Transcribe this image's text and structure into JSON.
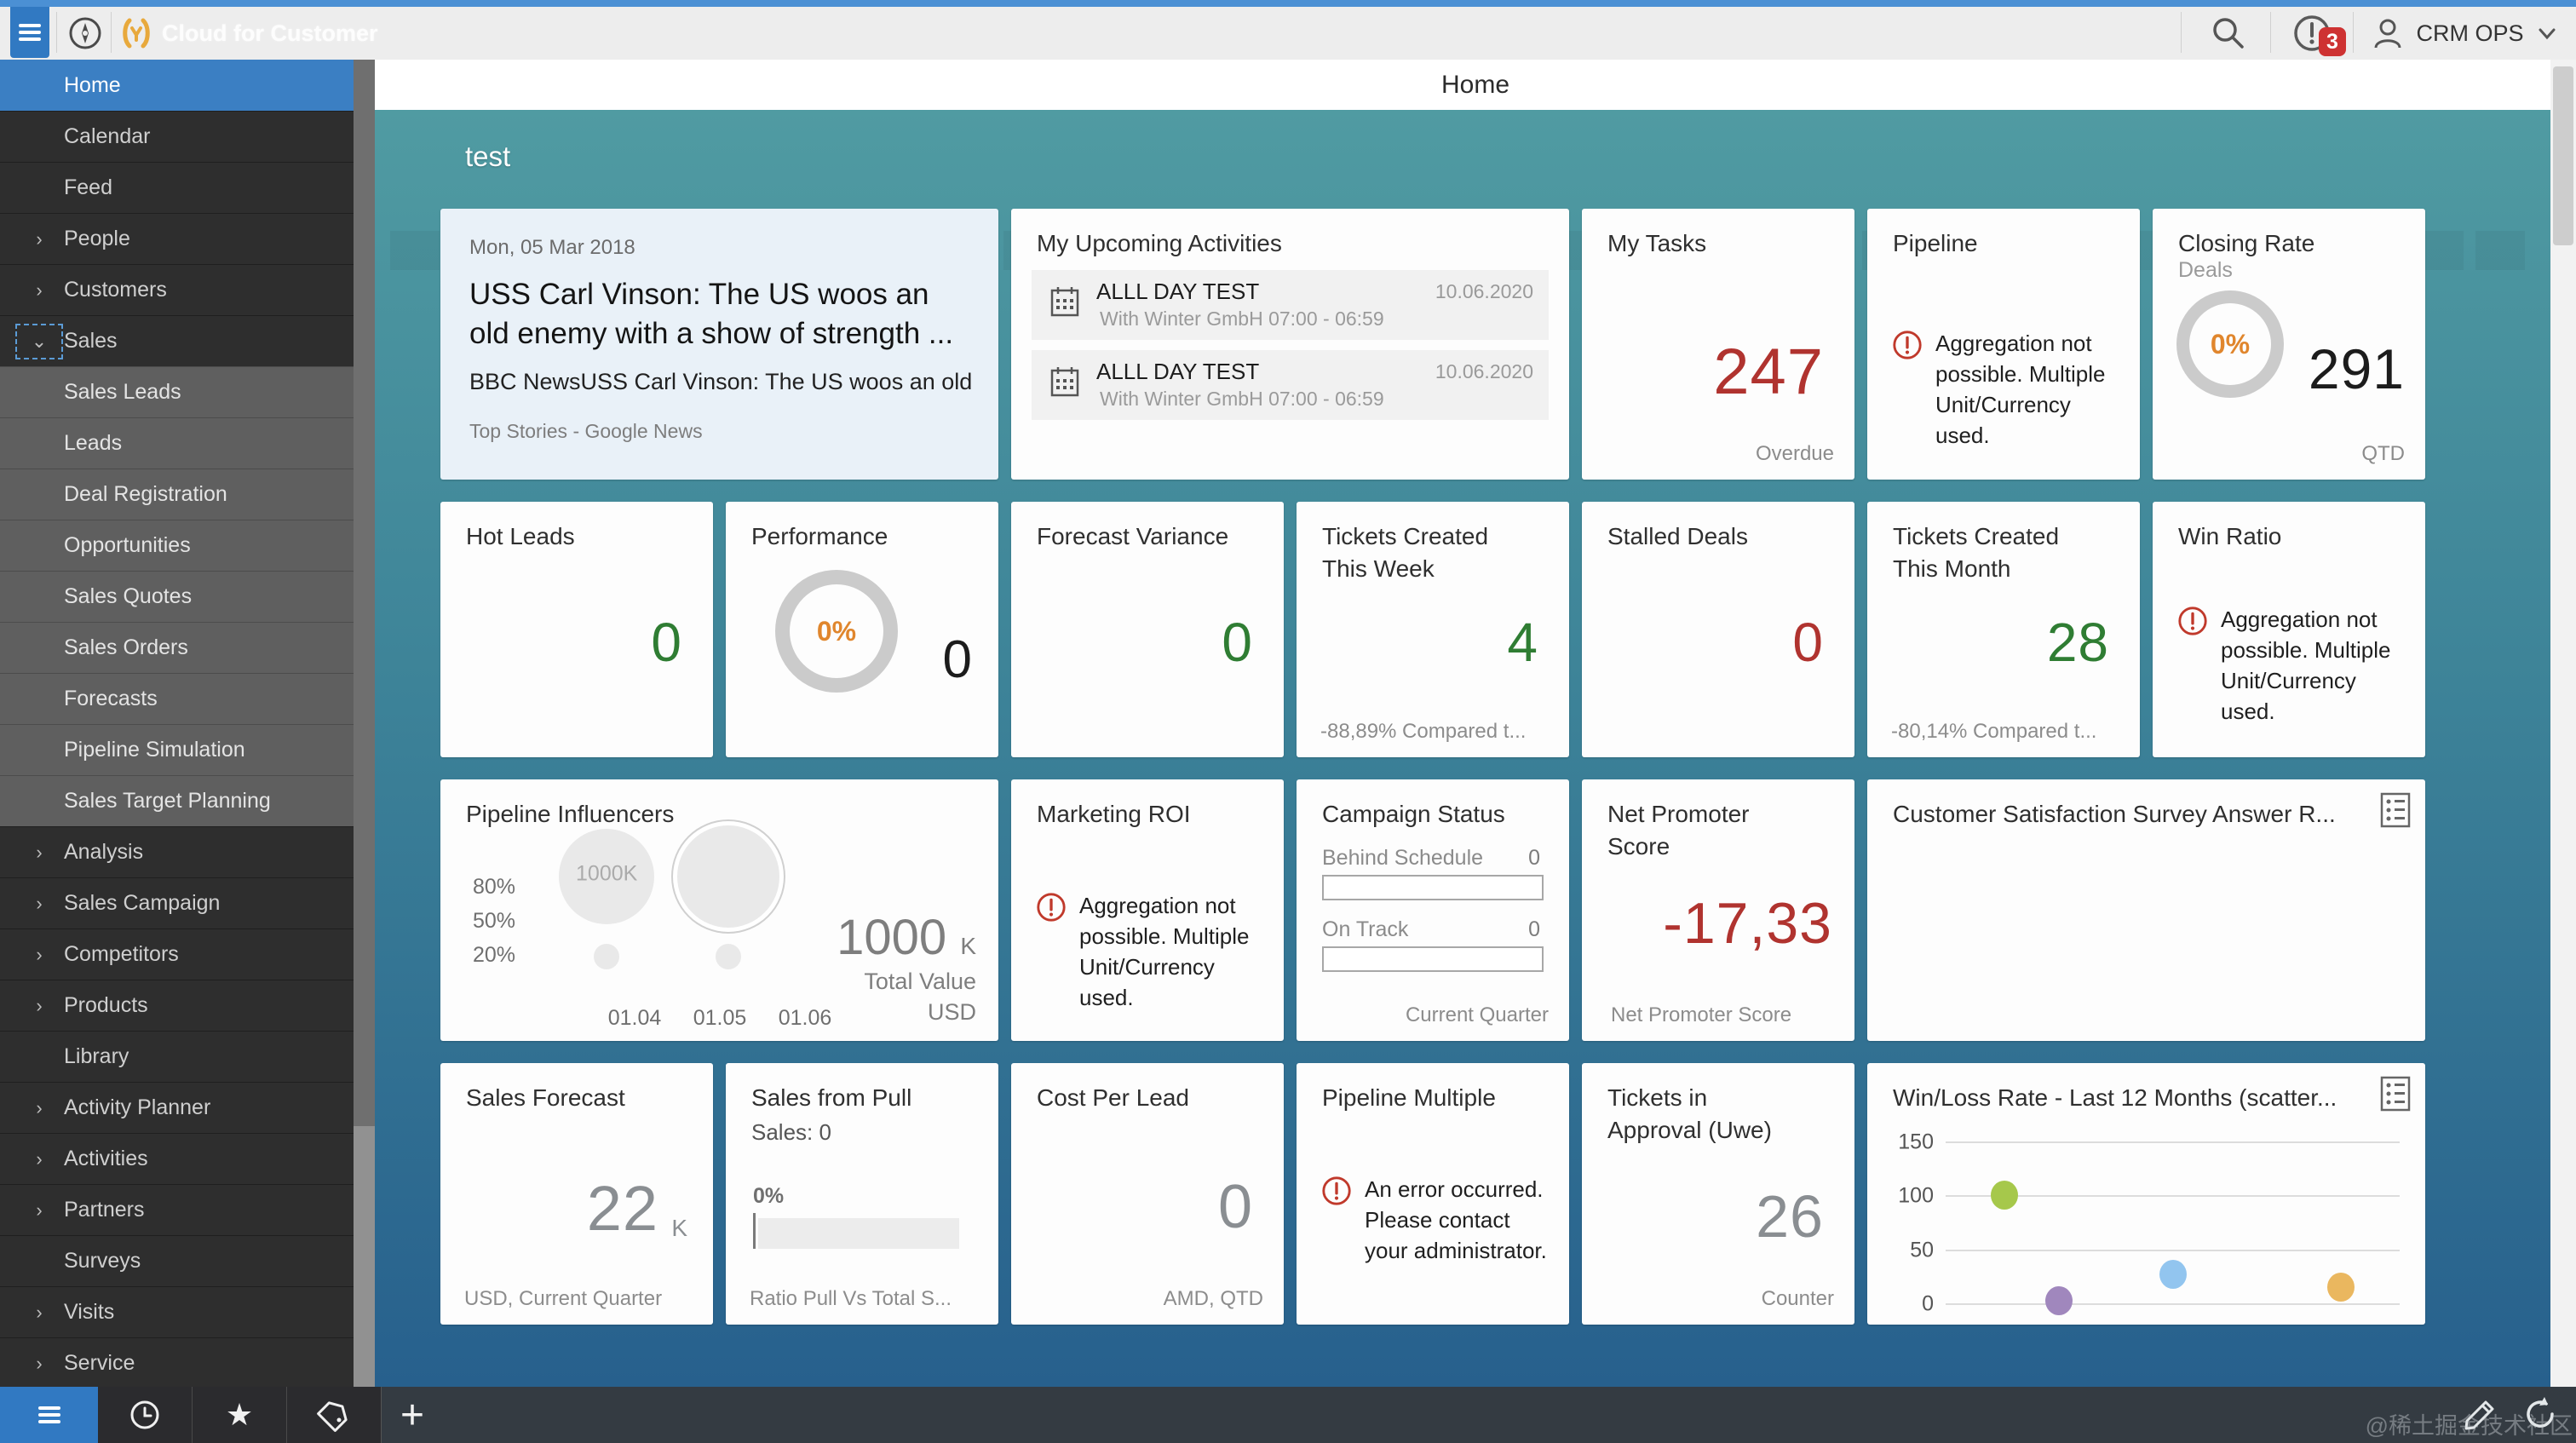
{
  "topbar": {
    "app_title": "Cloud for Customer",
    "user_name": "CRM OPS",
    "alert_count": "3"
  },
  "main_header": {
    "title": "Home"
  },
  "dashboard": {
    "title": "test"
  },
  "sidebar": {
    "items": [
      {
        "label": "Home",
        "chevron": "",
        "type": "selected"
      },
      {
        "label": "Calendar",
        "chevron": "",
        "type": "item"
      },
      {
        "label": "Feed",
        "chevron": "",
        "type": "item"
      },
      {
        "label": "People",
        "chevron": "›",
        "type": "item"
      },
      {
        "label": "Customers",
        "chevron": "›",
        "type": "item"
      },
      {
        "label": "Sales",
        "chevron": "⌄",
        "type": "item",
        "focused": true
      },
      {
        "label": "Sales Leads",
        "chevron": "",
        "type": "sub"
      },
      {
        "label": "Leads",
        "chevron": "",
        "type": "sub"
      },
      {
        "label": "Deal Registration",
        "chevron": "",
        "type": "sub"
      },
      {
        "label": "Opportunities",
        "chevron": "",
        "type": "sub"
      },
      {
        "label": "Sales Quotes",
        "chevron": "",
        "type": "sub"
      },
      {
        "label": "Sales Orders",
        "chevron": "",
        "type": "sub"
      },
      {
        "label": "Forecasts",
        "chevron": "",
        "type": "sub"
      },
      {
        "label": "Pipeline Simulation",
        "chevron": "",
        "type": "sub"
      },
      {
        "label": "Sales Target Planning",
        "chevron": "",
        "type": "sub"
      },
      {
        "label": "Analysis",
        "chevron": "›",
        "type": "item"
      },
      {
        "label": "Sales Campaign",
        "chevron": "›",
        "type": "item"
      },
      {
        "label": "Competitors",
        "chevron": "›",
        "type": "item"
      },
      {
        "label": "Products",
        "chevron": "›",
        "type": "item"
      },
      {
        "label": "Library",
        "chevron": "",
        "type": "item"
      },
      {
        "label": "Activity Planner",
        "chevron": "›",
        "type": "item"
      },
      {
        "label": "Activities",
        "chevron": "›",
        "type": "item"
      },
      {
        "label": "Partners",
        "chevron": "›",
        "type": "item"
      },
      {
        "label": "Surveys",
        "chevron": "",
        "type": "item"
      },
      {
        "label": "Visits",
        "chevron": "›",
        "type": "item"
      },
      {
        "label": "Service",
        "chevron": "›",
        "type": "item"
      }
    ]
  },
  "tiles": {
    "news": {
      "date": "Mon, 05 Mar 2018",
      "headline": "USS Carl Vinson: The US woos an old enemy with a show of strength ...",
      "snippet": "BBC NewsUSS Carl Vinson: The US woos an old ...",
      "source": "Top Stories - Google News"
    },
    "upcoming": {
      "title": "My Upcoming Activities",
      "items": [
        {
          "name": "ALLL DAY TEST",
          "detail": "With Winter GmbH 07:00 - 06:59",
          "date": "10.06.2020"
        },
        {
          "name": "ALLL DAY TEST",
          "detail": "With Winter GmbH 07:00 - 06:59",
          "date": "10.06.2020"
        }
      ]
    },
    "my_tasks": {
      "title": "My Tasks",
      "value": "247",
      "caption": "Overdue"
    },
    "pipeline": {
      "title": "Pipeline",
      "message": "Aggregation not possible. Multiple Unit/Currency used."
    },
    "closing_rate": {
      "title": "Closing Rate",
      "subtitle": "Deals",
      "pct": "0%",
      "value": "291",
      "caption": "QTD"
    },
    "hot_leads": {
      "title": "Hot Leads",
      "value": "0"
    },
    "performance": {
      "title": "Performance",
      "pct": "0%",
      "value": "0"
    },
    "forecast_variance": {
      "title": "Forecast Variance",
      "value": "0"
    },
    "tickets_week": {
      "title": "Tickets Created This Week",
      "value": "4",
      "caption": "-88,89% Compared t..."
    },
    "stalled_deals": {
      "title": "Stalled Deals",
      "value": "0"
    },
    "tickets_month": {
      "title": "Tickets Created This Month",
      "value": "28",
      "caption": "-80,14% Compared t..."
    },
    "win_ratio": {
      "title": "Win Ratio",
      "message": "Aggregation not possible. Multiple Unit/Currency used."
    },
    "influencers": {
      "title": "Pipeline Influencers",
      "total": "1000",
      "total_unit": "K",
      "total_label": "Total Value",
      "currency": "USD"
    },
    "marketing_roi": {
      "title": "Marketing ROI",
      "message": "Aggregation not possible. Multiple Unit/Currency used."
    },
    "campaign_status": {
      "title": "Campaign Status",
      "rows": [
        {
          "label": "Behind Schedule",
          "value": "0"
        },
        {
          "label": "On Track",
          "value": "0"
        }
      ],
      "caption": "Current Quarter"
    },
    "nps": {
      "title": "Net Promoter Score",
      "value": "-17,33",
      "caption": "Net Promoter Score"
    },
    "csat": {
      "title": "Customer Satisfaction Survey Answer R..."
    },
    "sales_forecast": {
      "title": "Sales Forecast",
      "value": "22",
      "unit": "K",
      "caption": "USD, Current Quarter"
    },
    "sales_from_pull": {
      "title": "Sales from Pull",
      "subtitle": "Sales: 0",
      "pct": "0%",
      "caption": "Ratio Pull Vs Total S..."
    },
    "cost_per_lead": {
      "title": "Cost Per Lead",
      "value": "0",
      "caption": "AMD, QTD"
    },
    "pipeline_multiple": {
      "title": "Pipeline Multiple",
      "message": "An error occurred. Please contact your administrator."
    },
    "tickets_approval": {
      "title": "Tickets in Approval (Uwe)",
      "value": "26",
      "caption": "Counter"
    },
    "win_loss": {
      "title": "Win/Loss Rate - Last 12 Months (scatter..."
    }
  },
  "chart_data": [
    {
      "type": "scatter",
      "title": "Pipeline Influencers",
      "subtype": "bubble",
      "ylabel_ticks": [
        "80%",
        "50%",
        "20%"
      ],
      "x_ticks": [
        "01.04",
        "01.05",
        "01.06"
      ],
      "total_value": "1000 K",
      "unit": "USD",
      "bubbles": [
        {
          "cx": 0.298,
          "cy": 0.36,
          "r": 56,
          "label": "1000K",
          "ring": false
        },
        {
          "cx": 0.516,
          "cy": 0.36,
          "r": 60,
          "label": "",
          "ring": true
        },
        {
          "cx": 0.298,
          "cy": 0.655,
          "r": 15,
          "label": "",
          "ring": false
        },
        {
          "cx": 0.516,
          "cy": 0.655,
          "r": 15,
          "label": "",
          "ring": false
        }
      ]
    },
    {
      "type": "scatter",
      "title": "Win/Loss Rate - Last 12 Months",
      "ylim": [
        0,
        150
      ],
      "yticks": [
        150,
        100,
        50,
        0
      ],
      "grid": true,
      "points": [
        {
          "x": 0.13,
          "y": 100,
          "color": "#a6c84b"
        },
        {
          "x": 0.25,
          "y": 2,
          "color": "#a087bd"
        },
        {
          "x": 0.5,
          "y": 27,
          "color": "#92c5ef"
        },
        {
          "x": 0.87,
          "y": 15,
          "color": "#eab75f"
        }
      ]
    }
  ],
  "watermark": "@稀土掘金技术社区"
}
